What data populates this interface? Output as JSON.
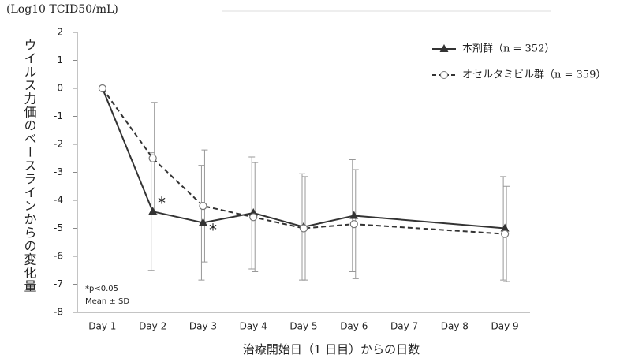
{
  "chart_data": {
    "type": "line",
    "units": "(Log10 TCID50/mL)",
    "y_label": "ウイルス力価のベースラインからの変化量",
    "x_label": "治療開始日（1 日目）からの日数",
    "categories": [
      "Day 1",
      "Day 2",
      "Day 3",
      "Day 4",
      "Day 5",
      "Day 6",
      "Day 7",
      "Day 8",
      "Day 9"
    ],
    "series": [
      {
        "name": "本剤群（n = 352）",
        "color": "#333333",
        "marker": "triangle",
        "dash": false,
        "values": [
          0,
          -4.4,
          -4.8,
          -4.45,
          -4.95,
          -4.55,
          null,
          null,
          -5.0
        ],
        "errors": [
          0,
          2.1,
          2.05,
          2.0,
          1.9,
          2.0,
          null,
          null,
          1.85
        ]
      },
      {
        "name": "オセルタミビル群（n = 359）",
        "color": "#333333",
        "marker": "circle",
        "dash": true,
        "values": [
          0,
          -2.5,
          -4.2,
          -4.6,
          -5.0,
          -4.85,
          null,
          null,
          -5.2
        ],
        "errors": [
          0,
          2.0,
          2.0,
          1.95,
          1.85,
          1.95,
          null,
          null,
          1.7
        ]
      }
    ],
    "annotations": [
      "*",
      "*",
      "*p<0.05",
      "Mean ± SD"
    ],
    "ylim": [
      -8,
      2
    ],
    "yticks": [
      -8,
      -7,
      -6,
      -5,
      -4,
      -3,
      -2,
      -1,
      0,
      1,
      2
    ],
    "legend": "upper right"
  }
}
